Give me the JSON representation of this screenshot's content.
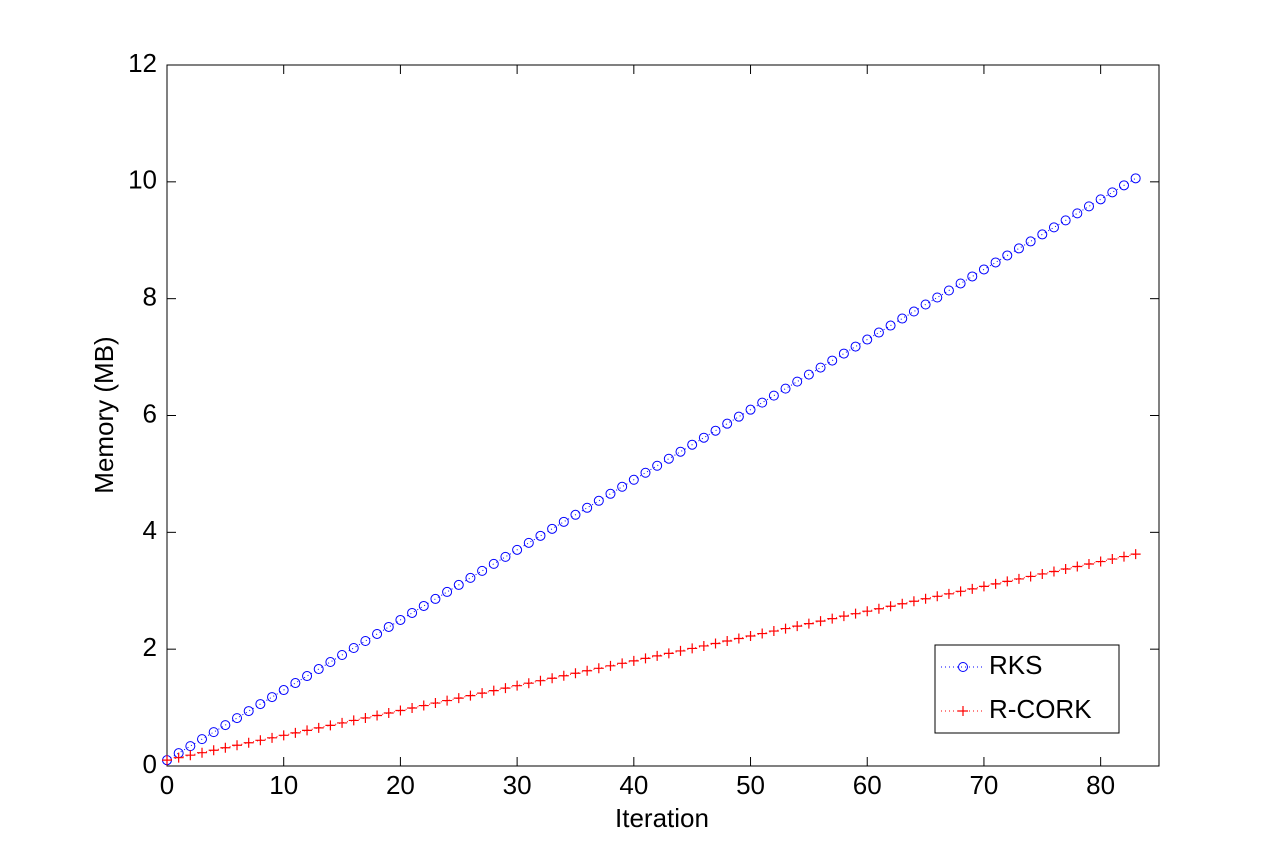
{
  "chart_data": {
    "type": "line",
    "xlabel": "Iteration",
    "ylabel": "Memory (MB)",
    "x": [
      0,
      1,
      2,
      3,
      4,
      5,
      6,
      7,
      8,
      9,
      10,
      11,
      12,
      13,
      14,
      15,
      16,
      17,
      18,
      19,
      20,
      21,
      22,
      23,
      24,
      25,
      26,
      27,
      28,
      29,
      30,
      31,
      32,
      33,
      34,
      35,
      36,
      37,
      38,
      39,
      40,
      41,
      42,
      43,
      44,
      45,
      46,
      47,
      48,
      49,
      50,
      51,
      52,
      53,
      54,
      55,
      56,
      57,
      58,
      59,
      60,
      61,
      62,
      63,
      64,
      65,
      66,
      67,
      68,
      69,
      70,
      71,
      72,
      73,
      74,
      75,
      76,
      77,
      78,
      79,
      80,
      81,
      82,
      83
    ],
    "series": [
      {
        "name": "RKS",
        "color": "#0000ff",
        "marker": "circle",
        "values": [
          0.1,
          0.22,
          0.34,
          0.46,
          0.58,
          0.7,
          0.82,
          0.94,
          1.06,
          1.18,
          1.3,
          1.42,
          1.54,
          1.66,
          1.78,
          1.9,
          2.02,
          2.14,
          2.26,
          2.38,
          2.5,
          2.62,
          2.74,
          2.86,
          2.98,
          3.1,
          3.22,
          3.34,
          3.46,
          3.58,
          3.7,
          3.82,
          3.94,
          4.06,
          4.18,
          4.3,
          4.42,
          4.54,
          4.66,
          4.78,
          4.9,
          5.02,
          5.14,
          5.26,
          5.38,
          5.5,
          5.62,
          5.74,
          5.86,
          5.98,
          6.1,
          6.22,
          6.34,
          6.46,
          6.58,
          6.7,
          6.82,
          6.94,
          7.06,
          7.18,
          7.3,
          7.42,
          7.54,
          7.66,
          7.78,
          7.9,
          8.02,
          8.14,
          8.26,
          8.38,
          8.5,
          8.62,
          8.74,
          8.86,
          8.98,
          9.1,
          9.22,
          9.34,
          9.46,
          9.58,
          9.7,
          9.82,
          9.94,
          10.06
        ]
      },
      {
        "name": "R-CORK",
        "color": "#ff0000",
        "marker": "plus",
        "values": [
          0.1,
          0.1425,
          0.185,
          0.2275,
          0.27,
          0.3125,
          0.355,
          0.3975,
          0.44,
          0.4825,
          0.525,
          0.5675,
          0.61,
          0.6525,
          0.695,
          0.7375,
          0.78,
          0.8225,
          0.865,
          0.9075,
          0.95,
          0.9925,
          1.035,
          1.0775,
          1.12,
          1.1625,
          1.205,
          1.2475,
          1.29,
          1.3325,
          1.375,
          1.4175,
          1.46,
          1.5025,
          1.545,
          1.5875,
          1.63,
          1.6725,
          1.715,
          1.7575,
          1.8,
          1.8425,
          1.885,
          1.9275,
          1.97,
          2.0125,
          2.055,
          2.0975,
          2.14,
          2.1825,
          2.225,
          2.2675,
          2.31,
          2.3525,
          2.395,
          2.4375,
          2.48,
          2.5225,
          2.565,
          2.6075,
          2.65,
          2.6925,
          2.735,
          2.7775,
          2.82,
          2.8625,
          2.905,
          2.9475,
          2.99,
          3.0325,
          3.075,
          3.1175,
          3.16,
          3.2025,
          3.245,
          3.2875,
          3.33,
          3.3725,
          3.415,
          3.4575,
          3.5,
          3.5425,
          3.585,
          3.6275
        ]
      }
    ],
    "xlim": [
      0,
      85
    ],
    "xticks": [
      0,
      10,
      20,
      30,
      40,
      50,
      60,
      70,
      80
    ],
    "ylim": [
      0,
      12
    ],
    "yticks": [
      0,
      2,
      4,
      6,
      8,
      10,
      12
    ],
    "legend": "lower right"
  }
}
